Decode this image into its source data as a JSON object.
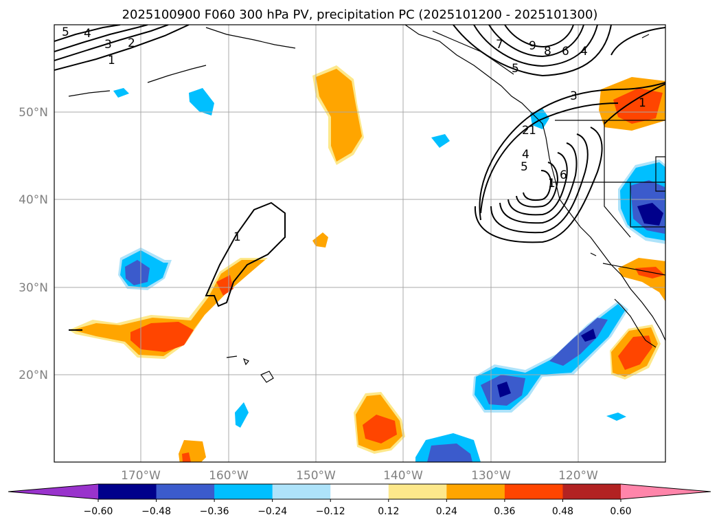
{
  "chart_data": {
    "type": "contour-map",
    "title": "2025100900 F060 300 hPa PV, precipitation PC (2025101200 - 2025101300)",
    "projection": "PlateCarree",
    "extent": {
      "lon": [
        -180,
        -110
      ],
      "lat": [
        10,
        60
      ]
    },
    "lat_ticks": [
      {
        "value": 50,
        "label": "50°N"
      },
      {
        "value": 40,
        "label": "40°N"
      },
      {
        "value": 30,
        "label": "30°N"
      },
      {
        "value": 20,
        "label": "20°N"
      }
    ],
    "lon_ticks": [
      {
        "value": -170,
        "label": "170°W"
      },
      {
        "value": -160,
        "label": "160°W"
      },
      {
        "value": -150,
        "label": "150°W"
      },
      {
        "value": -140,
        "label": "140°W"
      },
      {
        "value": -130,
        "label": "130°W"
      },
      {
        "value": -120,
        "label": "120°W"
      }
    ],
    "colorbar": {
      "levels": [
        -0.6,
        -0.48,
        -0.36,
        -0.24,
        -0.12,
        0.12,
        0.24,
        0.36,
        0.48,
        0.6
      ],
      "tick_labels": [
        "−0.60",
        "−0.48",
        "−0.36",
        "−0.24",
        "−0.12",
        "0.12",
        "0.24",
        "0.36",
        "0.48",
        "0.60"
      ],
      "colors": [
        "#9933cc",
        "#00008b",
        "#3b5bcc",
        "#00bfff",
        "#aee3fa",
        "#ffffff",
        "#fde88b",
        "#ffa500",
        "#ff4500",
        "#b22222",
        "#ff85aa"
      ],
      "extend": "both"
    },
    "pv_contour_labels": [
      "5",
      "4",
      "3",
      "2",
      "1",
      "1",
      "7",
      "9",
      "8",
      "6",
      "4",
      "5",
      "3",
      "1",
      "1",
      "2",
      "4",
      "5",
      "6",
      "1"
    ]
  }
}
